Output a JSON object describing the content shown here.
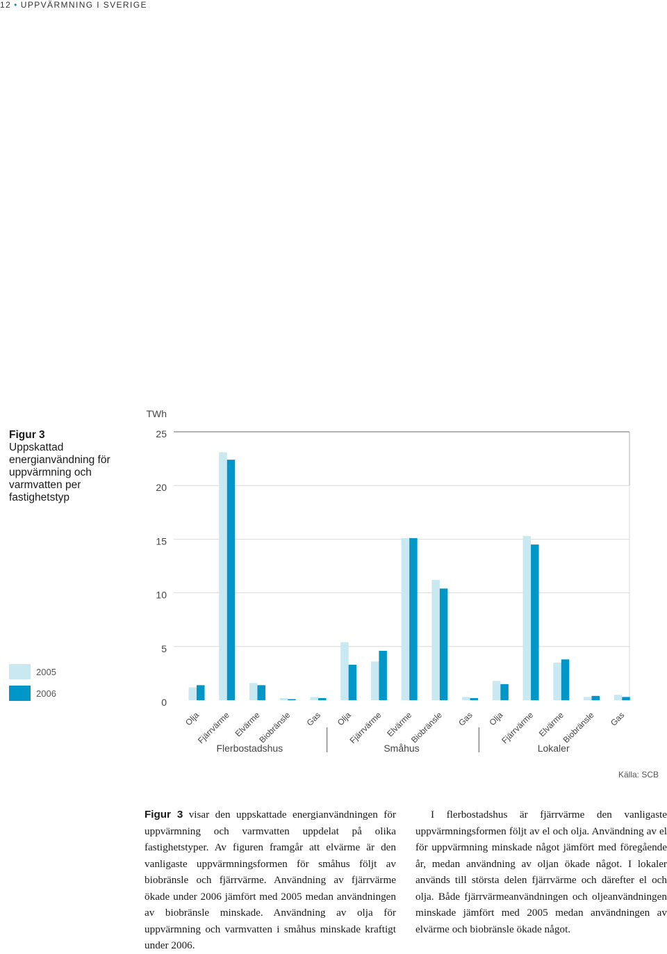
{
  "header": {
    "page_number": "12",
    "section": "UPPVÄRMNING I SVERIGE"
  },
  "figure": {
    "number_label": "Figur 3",
    "caption": "Uppskattad energianvändning för uppvärmning och varmvatten per fastighetstyp",
    "source": "Källa: SCB"
  },
  "colors": {
    "series_2005": "#c8e8f2",
    "series_2006": "#0096c8",
    "accent": "#0096c8"
  },
  "chart_data": {
    "type": "bar",
    "title": "",
    "xlabel": "",
    "ylabel": "TWh",
    "ylim": [
      0,
      25
    ],
    "yticks": [
      0,
      5,
      10,
      15,
      20,
      25
    ],
    "grid": true,
    "legend_position": "left",
    "groups": [
      "Flerbostadshus",
      "Småhus",
      "Lokaler"
    ],
    "categories": [
      "Olja",
      "Fjärrvärme",
      "Elvärme",
      "Biobränsle",
      "Gas",
      "Olja",
      "Fjärrvärme",
      "Elvärme",
      "Biobränsle",
      "Gas",
      "Olja",
      "Fjärrvärme",
      "Elvärme",
      "Biobränsle",
      "Gas"
    ],
    "series": [
      {
        "name": "2005",
        "values": [
          1.2,
          23.1,
          1.6,
          0.2,
          0.3,
          5.4,
          3.6,
          15.1,
          11.2,
          0.3,
          1.8,
          15.3,
          3.5,
          0.3,
          0.5
        ]
      },
      {
        "name": "2006",
        "values": [
          1.4,
          22.4,
          1.4,
          0.1,
          0.2,
          3.3,
          4.6,
          15.1,
          10.4,
          0.2,
          1.5,
          14.5,
          3.8,
          0.4,
          0.3
        ]
      }
    ]
  },
  "body": {
    "left_lead": "Figur 3",
    "left_text": " visar den uppskattade energianvändningen för uppvärmning och varmvatten uppdelat på olika fastighetstyper. Av figuren framgår att elvärme är den vanligaste uppvärmningsformen för småhus följt av biobränsle och fjärrvärme. Användning av fjärrvärme ökade under 2006 jämfört med 2005 medan användningen av biobränsle minskade. Användning av olja för uppvärmning och varmvatten i småhus minskade kraftigt under 2006.",
    "right_text": "I flerbostadshus är fjärrvärme den vanligaste uppvärmningsformen följt av el och olja. Användning av el för uppvärmning minskade något jämfört med föregående år, medan användning av oljan ökade något. I lokaler används till största delen fjärrvärme och därefter el och olja. Både fjärrvärmeanvändningen och oljeanvändningen minskade jämfört med 2005 medan användningen av elvärme och biobränsle ökade något."
  }
}
